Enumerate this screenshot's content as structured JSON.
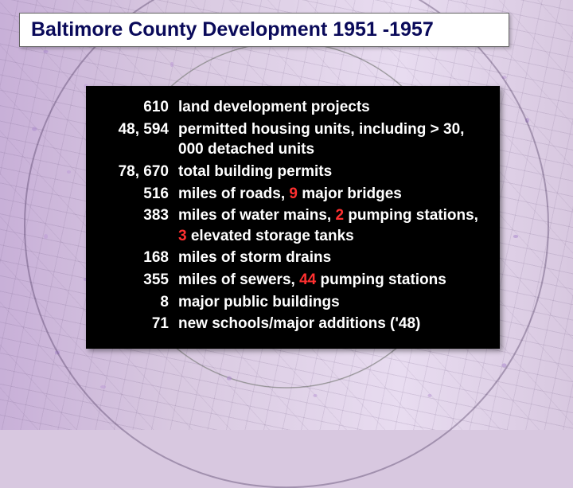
{
  "title": "Baltimore County Development 1951 -1957",
  "colors": {
    "highlight": "#ff3030",
    "text": "#ffffff",
    "box_bg": "#000000",
    "title_text": "#0a0a5a",
    "title_bg": "#ffffff",
    "page_bg": "#d8c8e0"
  },
  "rows": [
    {
      "num": "610",
      "desc": "land development projects"
    },
    {
      "num": "48, 594",
      "desc": "permitted housing units, including > 30, 000 detached units"
    },
    {
      "num": "78, 670",
      "desc": "total building permits"
    },
    {
      "num": "516",
      "desc": "miles of roads, {hl}9{/hl} major bridges"
    },
    {
      "num": "383",
      "desc": "miles of water mains, {hl}2{/hl} pumping stations, {hl}3{/hl} elevated storage tanks"
    },
    {
      "num": "168",
      "desc": "miles of storm drains"
    },
    {
      "num": "355",
      "desc": "miles of sewers, {hl}44{/hl} pumping stations"
    },
    {
      "num": "8",
      "desc": "major public buildings"
    },
    {
      "num": "71",
      "desc": "new schools/major additions ('48)"
    }
  ]
}
